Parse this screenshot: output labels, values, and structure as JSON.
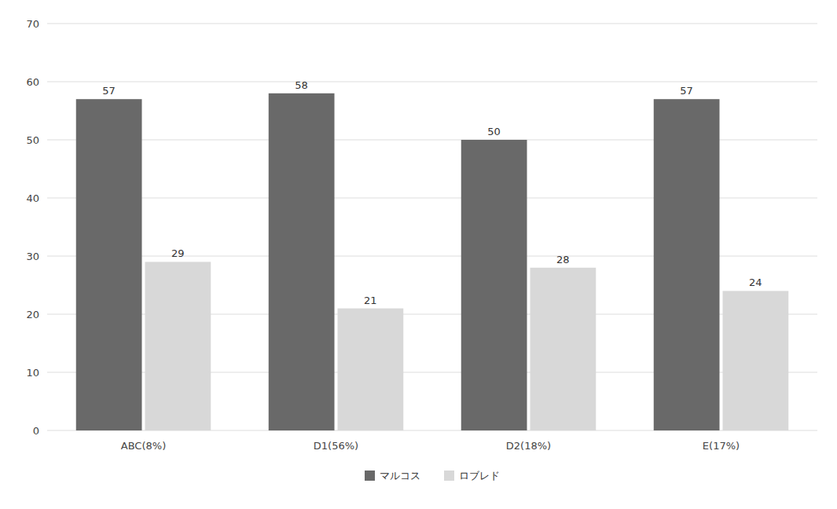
{
  "chart_data": {
    "type": "bar",
    "categories": [
      "ABC(8%)",
      "D1(56%)",
      "D2(18%)",
      "E(17%)"
    ],
    "series": [
      {
        "name": "マルコス",
        "color": "#696969",
        "values": [
          57,
          58,
          50,
          57
        ]
      },
      {
        "name": "ロブレド",
        "color": "#d8d8d8",
        "values": [
          29,
          21,
          28,
          24
        ]
      }
    ],
    "ylim": [
      0,
      70
    ],
    "yticks": [
      0,
      10,
      20,
      30,
      40,
      50,
      60,
      70
    ],
    "grid": true,
    "legend": "bottom",
    "data_labels": true
  }
}
